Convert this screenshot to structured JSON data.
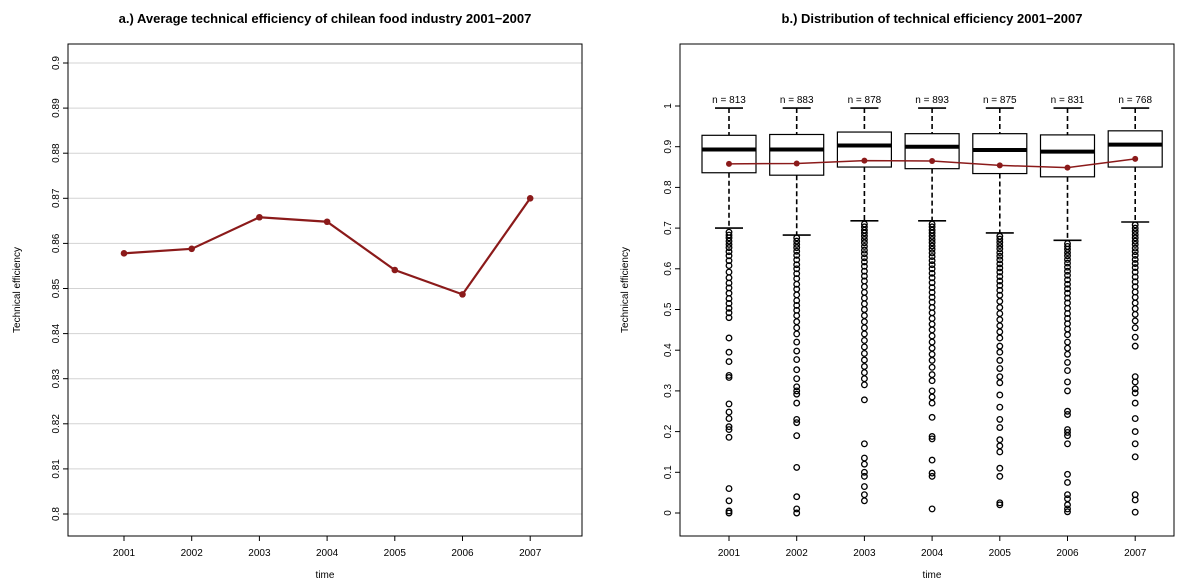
{
  "chart_data": [
    {
      "type": "line",
      "title": "a.) Average technical efficiency of chilean food industry 2001−2007",
      "xlabel": "time",
      "ylabel": "Technical efficiency",
      "x": [
        "2001",
        "2002",
        "2003",
        "2004",
        "2005",
        "2006",
        "2007"
      ],
      "series": [
        {
          "values": [
            0.8578,
            0.8588,
            0.8658,
            0.8648,
            0.8541,
            0.8487,
            0.87
          ]
        }
      ],
      "ylim": [
        0.8,
        0.9
      ],
      "yticks": [
        "0.8",
        "0.81",
        "0.82",
        "0.83",
        "0.84",
        "0.85",
        "0.86",
        "0.87",
        "0.88",
        "0.89",
        "0.9"
      ],
      "grid": true,
      "line_color": "#8b1a1a"
    },
    {
      "type": "box",
      "title": "b.) Distribution of technical efficiency 2001−2007",
      "xlabel": "time",
      "ylabel": "Technical efficiency",
      "categories": [
        "2001",
        "2002",
        "2003",
        "2004",
        "2005",
        "2006",
        "2007"
      ],
      "n_labels": [
        "n = 813",
        "n = 883",
        "n = 878",
        "n = 893",
        "n = 875",
        "n = 831",
        "n = 768"
      ],
      "ylim": [
        0,
        1
      ],
      "yticks": [
        "0",
        "0.1",
        "0.2",
        "0.3",
        "0.4",
        "0.5",
        "0.6",
        "0.7",
        "0.8",
        "0.9",
        "1"
      ],
      "boxes": [
        {
          "q1": 0.836,
          "median": 0.893,
          "q3": 0.928,
          "lower_whisker": 0.7,
          "upper_whisker": 0.995,
          "outliers": [
            0.69,
            0.683,
            0.676,
            0.668,
            0.66,
            0.652,
            0.642,
            0.632,
            0.62,
            0.608,
            0.592,
            0.578,
            0.565,
            0.553,
            0.54,
            0.527,
            0.515,
            0.503,
            0.492,
            0.48,
            0.43,
            0.395,
            0.372,
            0.338,
            0.333,
            0.268,
            0.248,
            0.232,
            0.212,
            0.205,
            0.186,
            0.06,
            0.03,
            0.005,
            0.0
          ]
        },
        {
          "q1": 0.83,
          "median": 0.893,
          "q3": 0.93,
          "lower_whisker": 0.683,
          "upper_whisker": 0.995,
          "outliers": [
            0.676,
            0.668,
            0.66,
            0.652,
            0.643,
            0.633,
            0.622,
            0.61,
            0.6,
            0.588,
            0.576,
            0.562,
            0.55,
            0.536,
            0.522,
            0.51,
            0.498,
            0.485,
            0.47,
            0.455,
            0.44,
            0.42,
            0.398,
            0.377,
            0.352,
            0.33,
            0.31,
            0.3,
            0.292,
            0.27,
            0.23,
            0.222,
            0.19,
            0.112,
            0.04,
            0.01,
            0.0
          ]
        },
        {
          "q1": 0.85,
          "median": 0.903,
          "q3": 0.936,
          "lower_whisker": 0.718,
          "upper_whisker": 0.995,
          "outliers": [
            0.71,
            0.703,
            0.695,
            0.688,
            0.68,
            0.672,
            0.664,
            0.655,
            0.646,
            0.637,
            0.627,
            0.617,
            0.606,
            0.594,
            0.582,
            0.57,
            0.556,
            0.542,
            0.528,
            0.514,
            0.5,
            0.485,
            0.47,
            0.455,
            0.44,
            0.424,
            0.408,
            0.392,
            0.376,
            0.36,
            0.345,
            0.33,
            0.315,
            0.278,
            0.17,
            0.135,
            0.12,
            0.1,
            0.09,
            0.065,
            0.045,
            0.03
          ]
        },
        {
          "q1": 0.846,
          "median": 0.9,
          "q3": 0.932,
          "lower_whisker": 0.718,
          "upper_whisker": 0.995,
          "outliers": [
            0.71,
            0.703,
            0.695,
            0.688,
            0.68,
            0.672,
            0.664,
            0.656,
            0.648,
            0.639,
            0.63,
            0.62,
            0.61,
            0.6,
            0.589,
            0.578,
            0.566,
            0.554,
            0.542,
            0.53,
            0.518,
            0.505,
            0.492,
            0.478,
            0.464,
            0.45,
            0.435,
            0.42,
            0.405,
            0.39,
            0.375,
            0.358,
            0.34,
            0.325,
            0.3,
            0.285,
            0.27,
            0.235,
            0.188,
            0.182,
            0.13,
            0.098,
            0.09,
            0.01
          ]
        },
        {
          "q1": 0.834,
          "median": 0.892,
          "q3": 0.932,
          "lower_whisker": 0.688,
          "upper_whisker": 0.995,
          "outliers": [
            0.68,
            0.673,
            0.665,
            0.657,
            0.649,
            0.64,
            0.631,
            0.622,
            0.612,
            0.602,
            0.592,
            0.581,
            0.57,
            0.559,
            0.547,
            0.535,
            0.52,
            0.505,
            0.49,
            0.475,
            0.46,
            0.445,
            0.43,
            0.41,
            0.395,
            0.375,
            0.355,
            0.335,
            0.32,
            0.29,
            0.26,
            0.23,
            0.21,
            0.18,
            0.165,
            0.15,
            0.11,
            0.09,
            0.025,
            0.02
          ]
        },
        {
          "q1": 0.826,
          "median": 0.888,
          "q3": 0.929,
          "lower_whisker": 0.67,
          "upper_whisker": 0.995,
          "outliers": [
            0.662,
            0.655,
            0.648,
            0.64,
            0.632,
            0.623,
            0.614,
            0.604,
            0.594,
            0.584,
            0.573,
            0.562,
            0.551,
            0.54,
            0.528,
            0.516,
            0.503,
            0.49,
            0.478,
            0.465,
            0.452,
            0.438,
            0.42,
            0.405,
            0.39,
            0.37,
            0.35,
            0.322,
            0.3,
            0.25,
            0.242,
            0.205,
            0.198,
            0.19,
            0.17,
            0.095,
            0.075,
            0.045,
            0.035,
            0.02,
            0.01,
            0.003
          ]
        },
        {
          "q1": 0.85,
          "median": 0.905,
          "q3": 0.939,
          "lower_whisker": 0.715,
          "upper_whisker": 0.995,
          "outliers": [
            0.708,
            0.7,
            0.692,
            0.684,
            0.676,
            0.668,
            0.66,
            0.651,
            0.642,
            0.633,
            0.623,
            0.613,
            0.603,
            0.592,
            0.58,
            0.568,
            0.556,
            0.543,
            0.53,
            0.516,
            0.502,
            0.488,
            0.472,
            0.455,
            0.432,
            0.41,
            0.335,
            0.322,
            0.305,
            0.295,
            0.27,
            0.232,
            0.2,
            0.17,
            0.138,
            0.045,
            0.032,
            0.002
          ]
        }
      ],
      "mean_line": [
        0.8578,
        0.8588,
        0.8658,
        0.8648,
        0.8541,
        0.8487,
        0.87
      ],
      "mean_color": "#8b1a1a"
    }
  ]
}
